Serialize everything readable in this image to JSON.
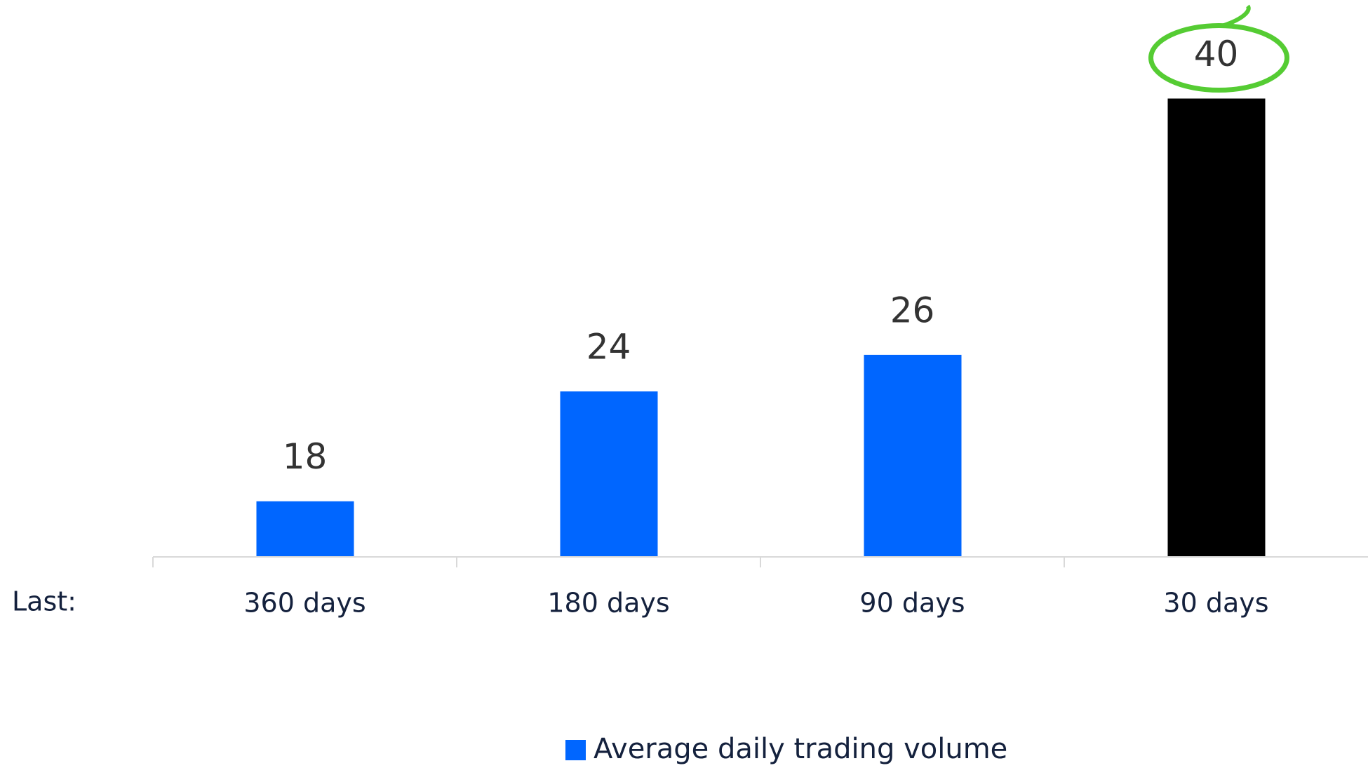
{
  "chart_data": {
    "type": "bar",
    "axis_prefix": "Last:",
    "categories": [
      "360 days",
      "180 days",
      "90 days",
      "30 days"
    ],
    "series": [
      {
        "name": "Average daily trading volume",
        "color": "#0066ff",
        "values": [
          18,
          24,
          26,
          40
        ],
        "colors": [
          "#0066ff",
          "#0066ff",
          "#0066ff",
          "#000000"
        ]
      }
    ],
    "ylim": [
      15,
      45
    ],
    "highlight_index": 3,
    "highlight_color": "#55cc33"
  }
}
